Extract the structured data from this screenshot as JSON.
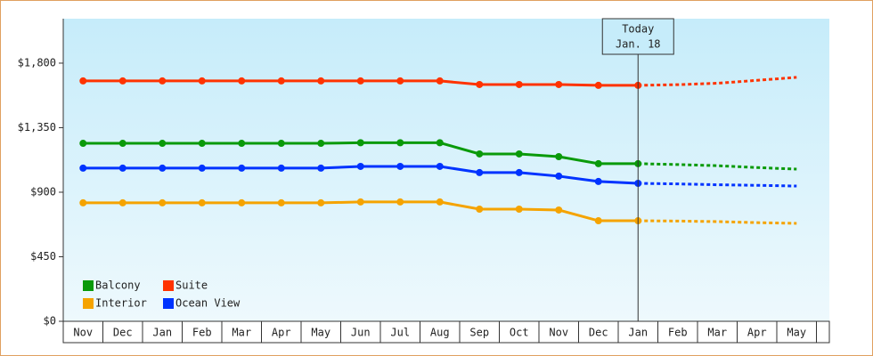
{
  "chart_data": {
    "type": "line",
    "categories": [
      "Nov",
      "Dec",
      "Jan",
      "Feb",
      "Mar",
      "Apr",
      "May",
      "Jun",
      "Jul",
      "Aug",
      "Sep",
      "Oct",
      "Nov",
      "Dec",
      "Jan",
      "Feb",
      "Mar",
      "Apr",
      "May"
    ],
    "annotation": [
      "Today",
      "Jan. 18"
    ],
    "ylim": [
      0,
      2110
    ],
    "yticks": [
      {
        "value": 0,
        "label": "$0"
      },
      {
        "value": 450,
        "label": "$450"
      },
      {
        "value": 900,
        "label": "$900"
      },
      {
        "value": 1350,
        "label": "$1,350"
      },
      {
        "value": 1800,
        "label": "$1,800"
      }
    ],
    "legend": "lower left",
    "series": [
      {
        "name": "Balcony",
        "color": "#0a9a0a",
        "values": [
          1241,
          1241,
          1241,
          1241,
          1241,
          1241,
          1241,
          1245,
          1245,
          1245,
          1167,
          1167,
          1148,
          1099,
          1099,
          null,
          null,
          null,
          null
        ],
        "forecast": [
          null,
          null,
          null,
          null,
          null,
          null,
          null,
          null,
          null,
          null,
          null,
          null,
          null,
          null,
          1099,
          1093,
          1085,
          1072,
          1061
        ]
      },
      {
        "name": "Suite",
        "color": "#ff3300",
        "values": [
          1676,
          1676,
          1676,
          1676,
          1676,
          1676,
          1676,
          1676,
          1676,
          1676,
          1651,
          1651,
          1651,
          1645,
          1645,
          null,
          null,
          null,
          null
        ],
        "forecast": [
          null,
          null,
          null,
          null,
          null,
          null,
          null,
          null,
          null,
          null,
          null,
          null,
          null,
          null,
          1645,
          1650,
          1660,
          1680,
          1701
        ]
      },
      {
        "name": "Interior",
        "color": "#f5a300",
        "values": [
          826,
          826,
          826,
          826,
          826,
          826,
          826,
          832,
          832,
          832,
          782,
          782,
          776,
          701,
          701,
          null,
          null,
          null,
          null
        ],
        "forecast": [
          null,
          null,
          null,
          null,
          null,
          null,
          null,
          null,
          null,
          null,
          null,
          null,
          null,
          null,
          701,
          699,
          695,
          688,
          683
        ]
      },
      {
        "name": "Ocean View",
        "color": "#0033ff",
        "values": [
          1068,
          1068,
          1068,
          1068,
          1068,
          1068,
          1068,
          1080,
          1080,
          1080,
          1037,
          1037,
          1012,
          975,
          962,
          null,
          null,
          null,
          null
        ],
        "forecast": [
          null,
          null,
          null,
          null,
          null,
          null,
          null,
          null,
          null,
          null,
          null,
          null,
          null,
          null,
          962,
          958,
          952,
          948,
          943
        ]
      }
    ]
  }
}
